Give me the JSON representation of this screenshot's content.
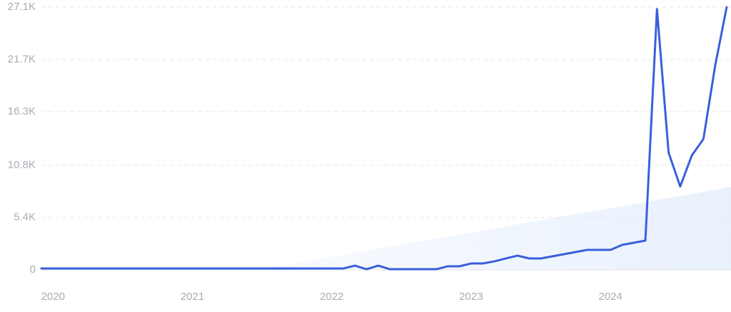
{
  "chart_data": {
    "type": "line",
    "color": "#3a5fdc",
    "grid": true,
    "categories": [
      null,
      "2020",
      null,
      null,
      null,
      null,
      null,
      null,
      null,
      null,
      null,
      null,
      null,
      "2021",
      null,
      null,
      null,
      null,
      null,
      null,
      null,
      null,
      null,
      null,
      null,
      "2022",
      null,
      null,
      null,
      null,
      null,
      null,
      null,
      null,
      null,
      null,
      null,
      "2023",
      null,
      null,
      null,
      null,
      null,
      null,
      null,
      null,
      null,
      null,
      null,
      "2024",
      null,
      null,
      null,
      null,
      null,
      null,
      null,
      null,
      null,
      null
    ],
    "values": [
      150,
      150,
      150,
      150,
      150,
      150,
      150,
      150,
      150,
      150,
      150,
      150,
      150,
      150,
      150,
      150,
      150,
      150,
      150,
      150,
      150,
      150,
      150,
      150,
      150,
      150,
      150,
      440,
      70,
      440,
      70,
      70,
      70,
      70,
      70,
      370,
      370,
      660,
      660,
      880,
      1180,
      1470,
      1180,
      1180,
      1400,
      1620,
      1840,
      2060,
      2060,
      2060,
      2580,
      2800,
      3020,
      26900,
      12100,
      8600,
      11800,
      13500,
      21000,
      27100
    ],
    "ylim": [
      0,
      27100
    ],
    "yticks": [
      0,
      {
        "value": 5400,
        "label": "5.4K"
      },
      {
        "value": 10800,
        "label": "10.8K"
      },
      {
        "value": 16300,
        "label": "16.3K"
      },
      {
        "value": 21700,
        "label": "21.7K"
      },
      {
        "value": 27100,
        "label": "27.1K"
      }
    ]
  }
}
